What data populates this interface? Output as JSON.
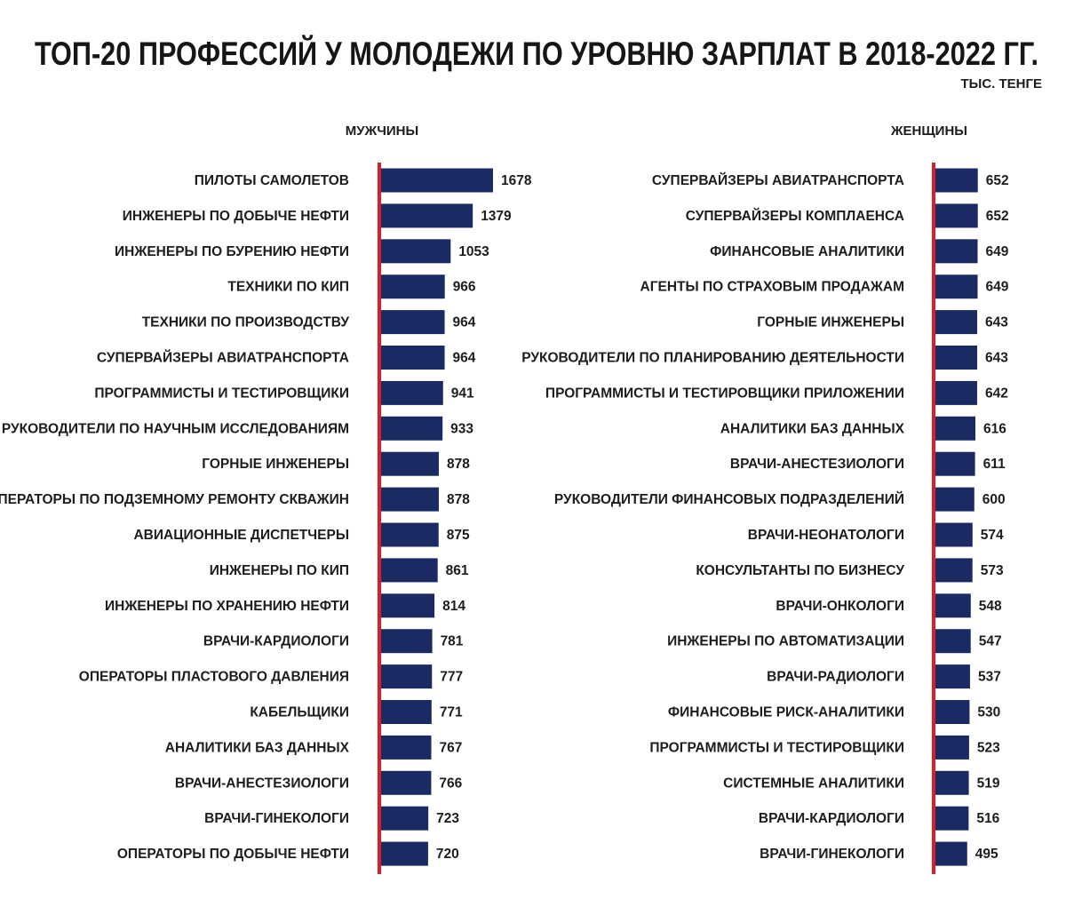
{
  "title": "ТОП-20 ПРОФЕССИЙ У МОЛОДЕЖИ ПО УРОВНЮ ЗАРПЛАТ В 2018-2022 ГГ.",
  "unit": "ТЫС. ТЕНГЕ",
  "colors": {
    "bar": "#1c2a63",
    "axis": "#d61f26",
    "text": "#1d1d1d"
  },
  "chart_data": [
    {
      "type": "bar",
      "orientation": "horizontal",
      "title": "МУЖЧИНЫ",
      "series": [
        {
          "values": [
            1678,
            1379,
            1053,
            966,
            964,
            964,
            941,
            933,
            878,
            878,
            875,
            861,
            814,
            781,
            777,
            771,
            767,
            766,
            723,
            720
          ]
        }
      ],
      "categories": [
        "ПИЛОТЫ САМОЛЕТОВ",
        "ИНЖЕНЕРЫ ПО ДОБЫЧЕ НЕФТИ",
        "ИНЖЕНЕРЫ ПО БУРЕНИЮ НЕФТИ",
        "ТЕХНИКИ ПО КИП",
        "ТЕХНИКИ ПО ПРОИЗВОДСТВУ",
        "СУПЕРВАЙЗЕРЫ АВИАТРАНСПОРТА",
        "ПРОГРАММИСТЫ И ТЕСТИРОВЩИКИ",
        "РУКОВОДИТЕЛИ ПО НАУЧНЫМ ИССЛЕДОВАНИЯМ",
        "ГОРНЫЕ ИНЖЕНЕРЫ",
        "ОПЕРАТОРЫ ПО ПОДЗЕМНОМУ РЕМОНТУ СКВАЖИН",
        "АВИАЦИОННЫЕ ДИСПЕТЧЕРЫ",
        "ИНЖЕНЕРЫ ПО КИП",
        "ИНЖЕНЕРЫ ПО  ХРАНЕНИЮ НЕФТИ",
        "ВРАЧИ-КАРДИОЛОГИ",
        "ОПЕРАТОРЫ ПЛАСТОВОГО ДАВЛЕНИЯ",
        "КАБЕЛЬЩИКИ",
        "АНАЛИТИКИ БАЗ ДАННЫХ",
        "ВРАЧИ-АНЕСТЕЗИОЛОГИ",
        "ВРАЧИ-ГИНЕКОЛОГИ",
        "ОПЕРАТОРЫ ПО ДОБЫЧЕ НЕФТИ"
      ],
      "xlim": [
        0,
        1678
      ]
    },
    {
      "type": "bar",
      "orientation": "horizontal",
      "title": "ЖЕНЩИНЫ",
      "series": [
        {
          "values": [
            652,
            652,
            649,
            649,
            643,
            643,
            642,
            616,
            611,
            600,
            574,
            573,
            548,
            547,
            537,
            530,
            523,
            519,
            516,
            495
          ]
        }
      ],
      "categories": [
        "СУПЕРВАЙЗЕРЫ АВИАТРАНСПОРТА",
        "СУПЕРВАЙЗЕРЫ КОМПЛАЕНСА",
        "ФИНАНСОВЫЕ АНАЛИТИКИ",
        "АГЕНТЫ ПО СТРАХОВЫМ ПРОДАЖАМ",
        "ГОРНЫЕ ИНЖЕНЕРЫ",
        "РУКОВОДИТЕЛИ ПО ПЛАНИРОВАНИЮ ДЕЯТЕЛЬНОСТИ",
        "ПРОГРАММИСТЫ И ТЕСТИРОВЩИКИ ПРИЛОЖЕНИИ",
        "АНАЛИТИКИ БАЗ ДАННЫХ",
        "ВРАЧИ-АНЕСТЕЗИОЛОГИ",
        "РУКОВОДИТЕЛИ ФИНАНСОВЫХ ПОДРАЗДЕЛЕНИЙ",
        "ВРАЧИ-НЕОНАТОЛОГИ",
        "КОНСУЛЬТАНТЫ ПО БИЗНЕСУ",
        "ВРАЧИ-ОНКОЛОГИ",
        "ИНЖЕНЕРЫ ПО АВТОМАТИЗАЦИИ",
        "ВРАЧИ-РАДИОЛОГИ",
        "ФИНАНСОВЫЕ РИСК-АНАЛИТИКИ",
        "ПРОГРАММИСТЫ И ТЕСТИРОВЩИКИ",
        "СИСТЕМНЫЕ АНАЛИТИКИ",
        "ВРАЧИ-КАРДИОЛОГИ",
        "ВРАЧИ-ГИНЕКОЛОГИ"
      ],
      "xlim": [
        0,
        1678
      ]
    }
  ]
}
